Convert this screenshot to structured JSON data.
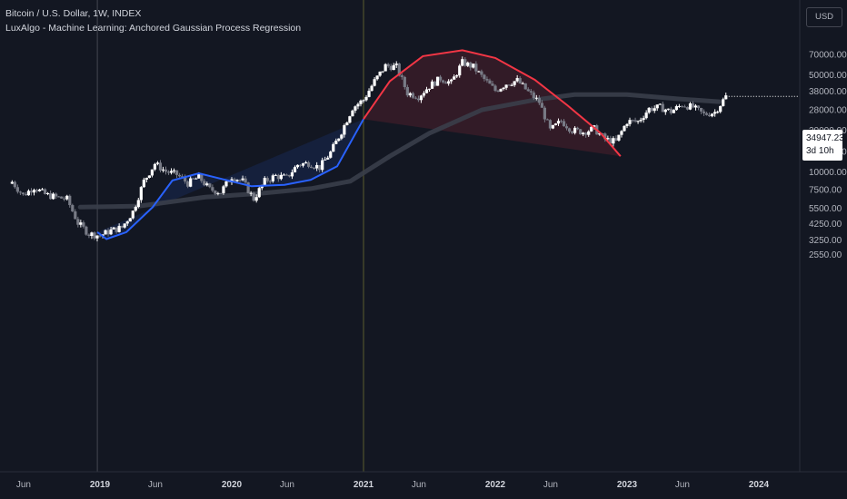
{
  "header": {
    "symbol_line": "Bitcoin / U.S. Dollar, 1W, INDEX",
    "indicator_line": "LuxAlgo - Machine Learning: Anchored Gaussian Process Regression"
  },
  "toolbar": {
    "currency_label": "USD"
  },
  "price_tag": {
    "price": "34947.23",
    "countdown": "3d 10h"
  },
  "colors": {
    "background": "#131722",
    "candle_up": "#ffffff",
    "candle_down": "#787b86",
    "gpr_fit": "#2962ff",
    "gpr_forecast": "#f23645",
    "moving_average": "#3a3e4a",
    "anchor_line": "#5b5c2e"
  },
  "chart_data": {
    "type": "candlestick",
    "y_scale": "log",
    "ylim": [
      2300,
      100000
    ],
    "y_ticks": [
      70000,
      50000,
      38000,
      28000,
      20000,
      14000,
      10000,
      7500,
      5500,
      4250,
      3250,
      2550
    ],
    "y_tick_labels": [
      "70000.00",
      "50000.00",
      "38000.00",
      "28000.00",
      "20000.00",
      "14000.00",
      "10000.00",
      "7500.00",
      "5500.00",
      "4250.00",
      "3250.00",
      "2550.00"
    ],
    "x_ticks": [
      "Jun",
      "2019",
      "Jun",
      "2020",
      "Jun",
      "2021",
      "Jun",
      "2022",
      "Jun",
      "2023",
      "Jun",
      "2024"
    ],
    "close_series_weekly": [
      {
        "date": "2018-05",
        "close": 8500
      },
      {
        "date": "2018-06",
        "close": 6800
      },
      {
        "date": "2018-07",
        "close": 7800
      },
      {
        "date": "2018-08",
        "close": 6900
      },
      {
        "date": "2018-09",
        "close": 6600
      },
      {
        "date": "2018-10",
        "close": 6400
      },
      {
        "date": "2018-11",
        "close": 4300
      },
      {
        "date": "2018-12",
        "close": 3600
      },
      {
        "date": "2019-01",
        "close": 3500
      },
      {
        "date": "2019-02",
        "close": 3800
      },
      {
        "date": "2019-03",
        "close": 4000
      },
      {
        "date": "2019-04",
        "close": 5200
      },
      {
        "date": "2019-05",
        "close": 8600
      },
      {
        "date": "2019-06",
        "close": 11500
      },
      {
        "date": "2019-07",
        "close": 10100
      },
      {
        "date": "2019-08",
        "close": 9600
      },
      {
        "date": "2019-09",
        "close": 8300
      },
      {
        "date": "2019-10",
        "close": 9200
      },
      {
        "date": "2019-11",
        "close": 7500
      },
      {
        "date": "2019-12",
        "close": 7200
      },
      {
        "date": "2020-01",
        "close": 9300
      },
      {
        "date": "2020-02",
        "close": 8600
      },
      {
        "date": "2020-03",
        "close": 6400
      },
      {
        "date": "2020-04",
        "close": 8600
      },
      {
        "date": "2020-05",
        "close": 9400
      },
      {
        "date": "2020-06",
        "close": 9100
      },
      {
        "date": "2020-07",
        "close": 11300
      },
      {
        "date": "2020-08",
        "close": 11600
      },
      {
        "date": "2020-09",
        "close": 10800
      },
      {
        "date": "2020-10",
        "close": 13800
      },
      {
        "date": "2020-11",
        "close": 19600
      },
      {
        "date": "2020-12",
        "close": 29000
      },
      {
        "date": "2021-01",
        "close": 33000
      },
      {
        "date": "2021-02",
        "close": 45000
      },
      {
        "date": "2021-03",
        "close": 58000
      },
      {
        "date": "2021-04",
        "close": 57000
      },
      {
        "date": "2021-05",
        "close": 37000
      },
      {
        "date": "2021-06",
        "close": 35000
      },
      {
        "date": "2021-07",
        "close": 41500
      },
      {
        "date": "2021-08",
        "close": 47100
      },
      {
        "date": "2021-09",
        "close": 43800
      },
      {
        "date": "2021-10",
        "close": 61300
      },
      {
        "date": "2021-11",
        "close": 57000
      },
      {
        "date": "2021-12",
        "close": 46300
      },
      {
        "date": "2022-01",
        "close": 38500
      },
      {
        "date": "2022-02",
        "close": 43200
      },
      {
        "date": "2022-03",
        "close": 45500
      },
      {
        "date": "2022-04",
        "close": 37600
      },
      {
        "date": "2022-05",
        "close": 31800
      },
      {
        "date": "2022-06",
        "close": 19900
      },
      {
        "date": "2022-07",
        "close": 23300
      },
      {
        "date": "2022-08",
        "close": 20000
      },
      {
        "date": "2022-09",
        "close": 19400
      },
      {
        "date": "2022-10",
        "close": 20500
      },
      {
        "date": "2022-11",
        "close": 17200
      },
      {
        "date": "2022-12",
        "close": 16500
      },
      {
        "date": "2023-01",
        "close": 23100
      },
      {
        "date": "2023-02",
        "close": 23100
      },
      {
        "date": "2023-03",
        "close": 28500
      },
      {
        "date": "2023-04",
        "close": 29200
      },
      {
        "date": "2023-05",
        "close": 27200
      },
      {
        "date": "2023-06",
        "close": 30500
      },
      {
        "date": "2023-07",
        "close": 29200
      },
      {
        "date": "2023-08",
        "close": 25900
      },
      {
        "date": "2023-09",
        "close": 27000
      },
      {
        "date": "2023-10",
        "close": 34947.23
      }
    ],
    "series": [
      {
        "values": [
          [
            2018.85,
            5600
          ],
          [
            2019.3,
            5700
          ],
          [
            2019.8,
            6600
          ],
          [
            2020.2,
            7000
          ],
          [
            2020.6,
            7600
          ],
          [
            2020.9,
            8600
          ],
          [
            2021.2,
            13000
          ],
          [
            2021.5,
            19000
          ],
          [
            2021.9,
            28000
          ],
          [
            2022.3,
            33000
          ],
          [
            2022.6,
            36000
          ],
          [
            2023.0,
            36000
          ],
          [
            2023.4,
            33500
          ],
          [
            2023.7,
            32000
          ]
        ]
      },
      {
        "values": [
          [
            2018.98,
            3700
          ],
          [
            2019.05,
            3300
          ],
          [
            2019.2,
            3700
          ],
          [
            2019.4,
            5600
          ],
          [
            2019.55,
            8700
          ],
          [
            2019.75,
            9800
          ],
          [
            2019.95,
            8800
          ],
          [
            2020.15,
            7900
          ],
          [
            2020.4,
            8100
          ],
          [
            2020.6,
            8800
          ],
          [
            2020.8,
            11000
          ],
          [
            2021.0,
            24000
          ]
        ]
      },
      {
        "values": [
          [
            2021.0,
            24000
          ],
          [
            2021.2,
            45000
          ],
          [
            2021.45,
            68000
          ],
          [
            2021.75,
            75000
          ],
          [
            2022.0,
            66000
          ],
          [
            2022.3,
            46000
          ],
          [
            2022.55,
            30000
          ],
          [
            2022.8,
            19000
          ],
          [
            2022.95,
            13000
          ]
        ]
      }
    ],
    "anchors": [
      2018.98,
      2021.0
    ]
  }
}
